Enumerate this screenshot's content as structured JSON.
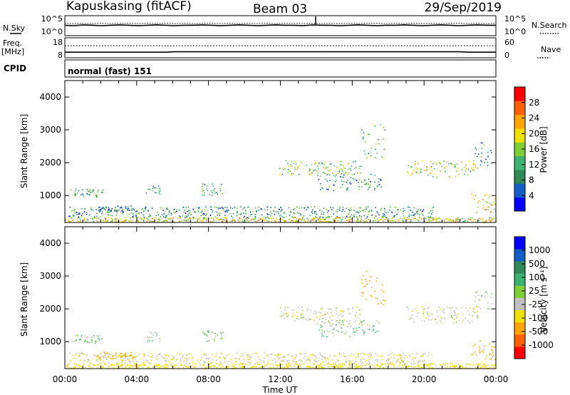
{
  "header": {
    "station": "Kapuskasing (fitACF)",
    "beam": "Beam 03",
    "date": "29/Sep/2019"
  },
  "noise_panel": {
    "left_label": "N.Sky",
    "left_ticks": [
      "10^5",
      "10^0"
    ],
    "right_ticks": [
      "10^5",
      "10^0"
    ],
    "right_label": "N.Search",
    "sky_levels": [
      2.6,
      2.5,
      2.7,
      2.6,
      2.5,
      2.6,
      2.7,
      2.6,
      2.5,
      2.6,
      2.7,
      2.6,
      2.5,
      2.6,
      2.6,
      2.7,
      2.6,
      2.5,
      2.6,
      2.7,
      2.6,
      2.5,
      2.6,
      2.7,
      2.6,
      2.6,
      2.5,
      2.7,
      2.6,
      2.6,
      2.5,
      2.6,
      2.7,
      2.6,
      2.5,
      2.6,
      2.6,
      2.7,
      2.6,
      2.5,
      2.6,
      2.7,
      2.6,
      2.5,
      2.6,
      2.7,
      2.6,
      2.6
    ],
    "search_levels": [
      3.1,
      3.0,
      3.1,
      3.0,
      3.1,
      3.0,
      3.1,
      3.1,
      3.0,
      3.1,
      3.0,
      3.1,
      3.0,
      3.1,
      3.0,
      3.1,
      3.1,
      3.0,
      3.1,
      3.0,
      3.1,
      3.0,
      3.1,
      3.0,
      3.1,
      3.1,
      3.0,
      3.1,
      3.0,
      3.1,
      3.0,
      3.1,
      3.0,
      3.1,
      3.1,
      3.0,
      3.1,
      3.0,
      3.1,
      3.0,
      3.1,
      3.0,
      3.1,
      3.1,
      3.0,
      3.1,
      3.0,
      3.1
    ]
  },
  "freq_panel": {
    "left_label_1": "Freq.",
    "left_label_2": "[MHz]",
    "left_ticks": [
      "18",
      "8"
    ],
    "right_ticks": [
      "60",
      "0"
    ],
    "right_label": "Nave",
    "freq_mhz": [
      10.8,
      10.8,
      10.8,
      10.8,
      10.8,
      10.8,
      10.8,
      10.8,
      10.8,
      10.8,
      10.8,
      10.8,
      11.0,
      11.0,
      11.0,
      11.0,
      11.0,
      11.0,
      11.0,
      11.0,
      11.0,
      11.0,
      11.0,
      11.0,
      11.0,
      11.0,
      11.0,
      11.0,
      11.0,
      11.0,
      11.0,
      11.0,
      11.0,
      11.0,
      11.0,
      11.0,
      11.0,
      11.0,
      11.0,
      11.0,
      11.0,
      11.0,
      11.0,
      11.0,
      10.8,
      10.8,
      10.8,
      10.8
    ],
    "nave": 36
  },
  "cpid": {
    "label": "CPID",
    "text": "normal (fast) 151"
  },
  "power_panel": {
    "ylabel": "Slant Range [km]",
    "yticks": [
      "4000",
      "3000",
      "2000",
      "1000"
    ],
    "colorbar_label": "Power [dB]",
    "colorbar_ticks": [
      "28",
      "24",
      "20",
      "16",
      "12",
      "8",
      "4"
    ],
    "colors": [
      "#0000ff",
      "#1060c8",
      "#2e8b57",
      "#3cb371",
      "#7fd036",
      "#f0e000",
      "#ffa500",
      "#ff6000",
      "#ff0000"
    ]
  },
  "velocity_panel": {
    "ylabel": "Slant Range [km]",
    "yticks": [
      "4000",
      "3000",
      "2000",
      "1000"
    ],
    "colorbar_label": "Velocity [m s⁻¹]",
    "colorbar_ticks": [
      "1000",
      "500",
      "100",
      "25",
      "-25",
      "-100",
      "-500",
      "-1000"
    ],
    "colors": [
      "#0000ff",
      "#1060c8",
      "#2e8b57",
      "#3cb371",
      "#7fd036",
      "#c0c0c0",
      "#f0e000",
      "#ffa500",
      "#ff6000",
      "#ff0000"
    ]
  },
  "x_axis": {
    "tick_labels": [
      "00:00",
      "04:00",
      "08:00",
      "12:00",
      "16:00",
      "20:00",
      "00:00"
    ],
    "label": "Time UT"
  },
  "chart_data": {
    "type": "heatmap",
    "title": "Kapuskasing (fitACF)",
    "x_axis": "Time UT",
    "x_range_hours": [
      0,
      24
    ],
    "y_axis": "Slant Range [km]",
    "y_range_km": [
      180,
      4500
    ],
    "panels": [
      "Power [dB]",
      "Velocity [m s-1]"
    ],
    "power_range_db": [
      0,
      30
    ],
    "velocity_range_ms": [
      -1000,
      1000
    ],
    "regions": [
      {
        "t0": 0.0,
        "t1": 24.0,
        "r0": 180,
        "r1": 330,
        "power": 18,
        "velocity": -60
      },
      {
        "t0": 0.2,
        "t1": 20.5,
        "r0": 330,
        "r1": 650,
        "power": 9,
        "velocity": -20
      },
      {
        "t0": 0.3,
        "t1": 2.1,
        "r0": 950,
        "r1": 1200,
        "power": 10,
        "velocity": 10
      },
      {
        "t0": 1.8,
        "t1": 3.9,
        "r0": 480,
        "r1": 680,
        "power": 7,
        "velocity": -180
      },
      {
        "t0": 4.5,
        "t1": 5.3,
        "r0": 1000,
        "r1": 1300,
        "power": 9,
        "velocity": 5
      },
      {
        "t0": 7.6,
        "t1": 8.8,
        "r0": 1000,
        "r1": 1350,
        "power": 9,
        "velocity": 5
      },
      {
        "t0": 11.9,
        "t1": 16.5,
        "r0": 1620,
        "r1": 2050,
        "power": 14,
        "velocity": -10
      },
      {
        "t0": 14.0,
        "t1": 17.6,
        "r0": 1150,
        "r1": 1650,
        "power": 8,
        "velocity": 20
      },
      {
        "t0": 16.5,
        "t1": 17.8,
        "r0": 2100,
        "r1": 3200,
        "power": 12,
        "velocity": -450
      },
      {
        "t0": 19.0,
        "t1": 23.0,
        "r0": 1550,
        "r1": 2050,
        "power": 16,
        "velocity": -10
      },
      {
        "t0": 22.6,
        "t1": 24.0,
        "r0": 450,
        "r1": 1050,
        "power": 20,
        "velocity": -420
      },
      {
        "t0": 22.8,
        "t1": 23.8,
        "r0": 1900,
        "r1": 2600,
        "power": 9,
        "velocity": 5
      }
    ]
  }
}
